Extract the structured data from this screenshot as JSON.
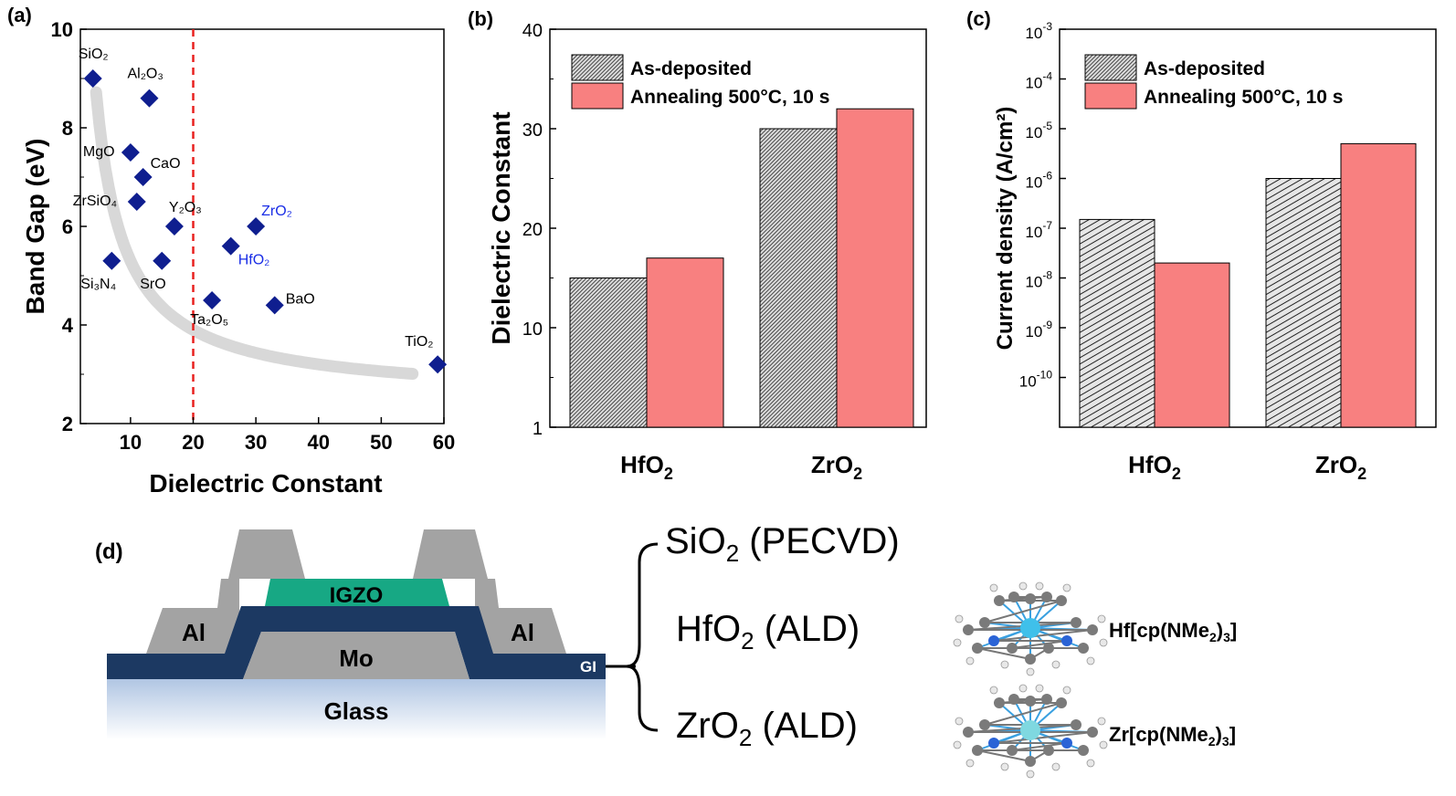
{
  "chart_data": [
    {
      "panel": "(a)",
      "type": "scatter",
      "xlabel": "Dielectric Constant",
      "ylabel": "Band Gap (eV)",
      "xlim": [
        2,
        60
      ],
      "ylim": [
        2,
        10
      ],
      "xticks": [
        "10",
        "20",
        "30",
        "40",
        "50",
        "60"
      ],
      "yticks": [
        "2",
        "4",
        "6",
        "8",
        "10"
      ],
      "marker_color": "#0f1e8f",
      "trend_color": "#d8d8d8",
      "threshold_color": "#e8211f",
      "threshold_x": 20,
      "points": [
        {
          "label": "SiO₂",
          "x": 4,
          "y": 9,
          "color": "#000000"
        },
        {
          "label": "Al₂O₃",
          "x": 13,
          "y": 8.6,
          "color": "#000000"
        },
        {
          "label": "MgO",
          "x": 10,
          "y": 7.5,
          "color": "#000000"
        },
        {
          "label": "CaO",
          "x": 12,
          "y": 7,
          "color": "#000000"
        },
        {
          "label": "ZrSiO₄",
          "x": 11,
          "y": 6.5,
          "color": "#000000"
        },
        {
          "label": "Y₂O₃",
          "x": 17,
          "y": 6,
          "color": "#000000"
        },
        {
          "label": "ZrO₂",
          "x": 30,
          "y": 6,
          "color": "#1a2ee6"
        },
        {
          "label": "HfO₂",
          "x": 26,
          "y": 5.6,
          "color": "#1a2ee6"
        },
        {
          "label": "Si₃N₄",
          "x": 7,
          "y": 5.3,
          "color": "#000000"
        },
        {
          "label": "SrO",
          "x": 15,
          "y": 5.3,
          "color": "#000000"
        },
        {
          "label": "Ta₂O₅",
          "x": 23,
          "y": 4.5,
          "color": "#000000"
        },
        {
          "label": "BaO",
          "x": 33,
          "y": 4.4,
          "color": "#000000"
        },
        {
          "label": "TiO₂",
          "x": 59,
          "y": 3.2,
          "color": "#000000"
        }
      ]
    },
    {
      "panel": "(b)",
      "type": "bar",
      "ylabel": "Dielectric Constant",
      "ylim": [
        0,
        40
      ],
      "yticks": [
        "1",
        "10",
        "20",
        "30",
        "40"
      ],
      "categories": [
        "HfO₂",
        "ZrO₂"
      ],
      "series": [
        {
          "name": "As-deposited",
          "values": [
            15,
            30
          ],
          "color": "#4a4a4a"
        },
        {
          "name": "Annealing 500°C, 10 s",
          "values": [
            17,
            32
          ],
          "color": "#f88080"
        }
      ]
    },
    {
      "panel": "(c)",
      "type": "bar",
      "ylabel": "Current density (A/cm²)",
      "yscale": "log",
      "ylim_exp": [
        -11,
        -3
      ],
      "ytick_exps": [
        "-10",
        "-9",
        "-8",
        "-7",
        "-6",
        "-5",
        "-4",
        "-3"
      ],
      "categories": [
        "HfO₂",
        "ZrO₂"
      ],
      "series": [
        {
          "name": "As-deposited",
          "values": [
            1.5e-07,
            1e-06
          ],
          "color": "#4a4a4a"
        },
        {
          "name": "Annealing 500°C, 10 s",
          "values": [
            2e-08,
            5e-06
          ],
          "color": "#f88080"
        }
      ]
    }
  ],
  "diagram": {
    "panel": "(d)",
    "layers": {
      "glass": "Glass",
      "gi": "GI",
      "mo": "Mo",
      "igzo": "IGZO",
      "al_left": "Al",
      "al_right": "Al"
    },
    "colors": {
      "gi": "#1c3962",
      "igzo": "#17a884",
      "metal": "#a3a3a3",
      "glass_top": "#aec4e2"
    },
    "gi_options": [
      {
        "base": "SiO",
        "sub": "2",
        "method": " (PECVD)"
      },
      {
        "base": "HfO",
        "sub": "2",
        "method": " (ALD)"
      },
      {
        "base": "ZrO",
        "sub": "2",
        "method": " (ALD)"
      }
    ],
    "precursors": [
      {
        "pre": "Hf[cp(NMe",
        "sub1": "2",
        "mid": ")",
        "sub2": "3",
        "post": "]"
      },
      {
        "pre": "Zr[cp(NMe",
        "sub1": "2",
        "mid": ")",
        "sub2": "3",
        "post": "]"
      }
    ]
  }
}
